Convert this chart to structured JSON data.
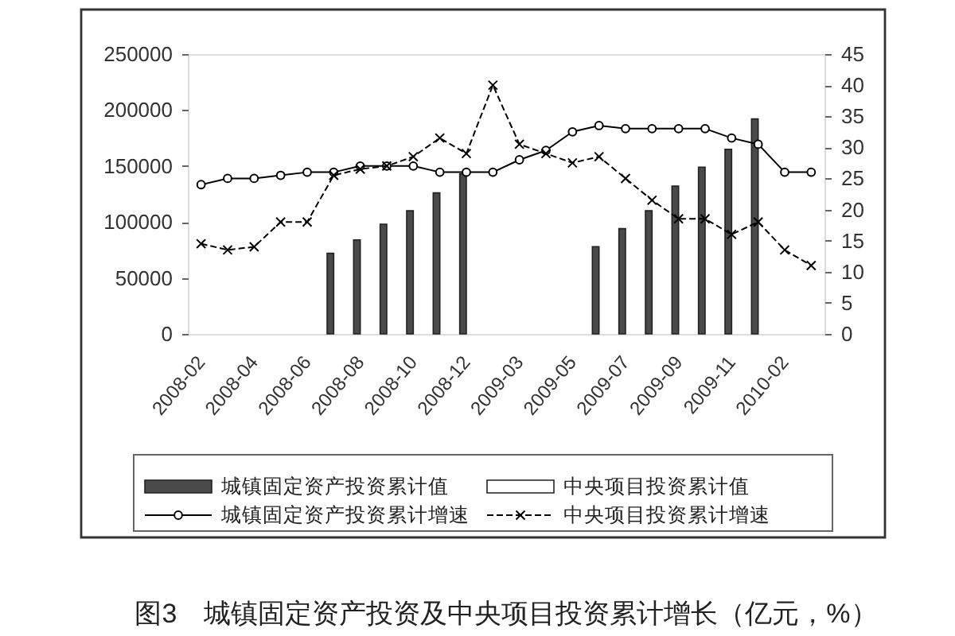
{
  "chart_data": {
    "type": "bar",
    "title": "图3　城镇固定资产投资及中央项目投资累计增长（亿元，%）",
    "categories": [
      "2008-02",
      null,
      "2008-04",
      null,
      "2008-06",
      null,
      "2008-08",
      null,
      "2008-10",
      null,
      "2008-12",
      null,
      "2009-03",
      null,
      "2009-05",
      null,
      "2009-07",
      null,
      "2009-09",
      null,
      "2009-11",
      null,
      "2010-02",
      null
    ],
    "series": [
      {
        "name": "城镇固定资产投资累计值",
        "color": "#4a4a4a",
        "values": [
          null,
          null,
          null,
          null,
          null,
          72000,
          84000,
          98000,
          110000,
          126000,
          143000,
          null,
          null,
          null,
          null,
          78000,
          94000,
          110000,
          132000,
          149000,
          165000,
          192000,
          null,
          null
        ]
      },
      {
        "name": "中央项目投资累计值",
        "color": "#ffffff",
        "values": [
          null,
          null,
          null,
          null,
          null,
          null,
          null,
          null,
          null,
          null,
          null,
          null,
          null,
          null,
          null,
          null,
          null,
          null,
          null,
          null,
          null,
          null,
          null,
          null
        ]
      },
      {
        "name": "城镇固定资产投资累计增速",
        "type": "line",
        "axis": "y2",
        "color": "#000000",
        "marker": "circle",
        "line_style": "solid",
        "values": [
          24,
          25,
          25,
          25.5,
          26,
          26,
          27,
          27,
          27,
          26,
          26,
          26,
          28,
          29.5,
          32.5,
          33.5,
          33,
          33,
          33,
          33,
          31.5,
          30.5,
          26,
          26
        ]
      },
      {
        "name": "中央项目投资累计增速",
        "type": "line",
        "axis": "y2",
        "color": "#000000",
        "marker": "cross",
        "line_style": "dashed",
        "values": [
          14.5,
          13.5,
          14,
          18,
          18,
          25.5,
          26.5,
          27,
          28.5,
          31.5,
          29,
          40,
          30.5,
          29,
          27.5,
          28.5,
          25,
          21.5,
          18.5,
          18.5,
          16,
          18,
          13.5,
          11
        ]
      }
    ],
    "ylim": [
      0,
      250000
    ],
    "yticks": [
      0,
      50000,
      100000,
      150000,
      200000,
      250000
    ],
    "y2lim": [
      0,
      45
    ],
    "y2ticks": [
      0,
      5,
      10,
      15,
      20,
      25,
      30,
      35,
      40,
      45
    ],
    "legend": "bottom",
    "grid": false
  }
}
